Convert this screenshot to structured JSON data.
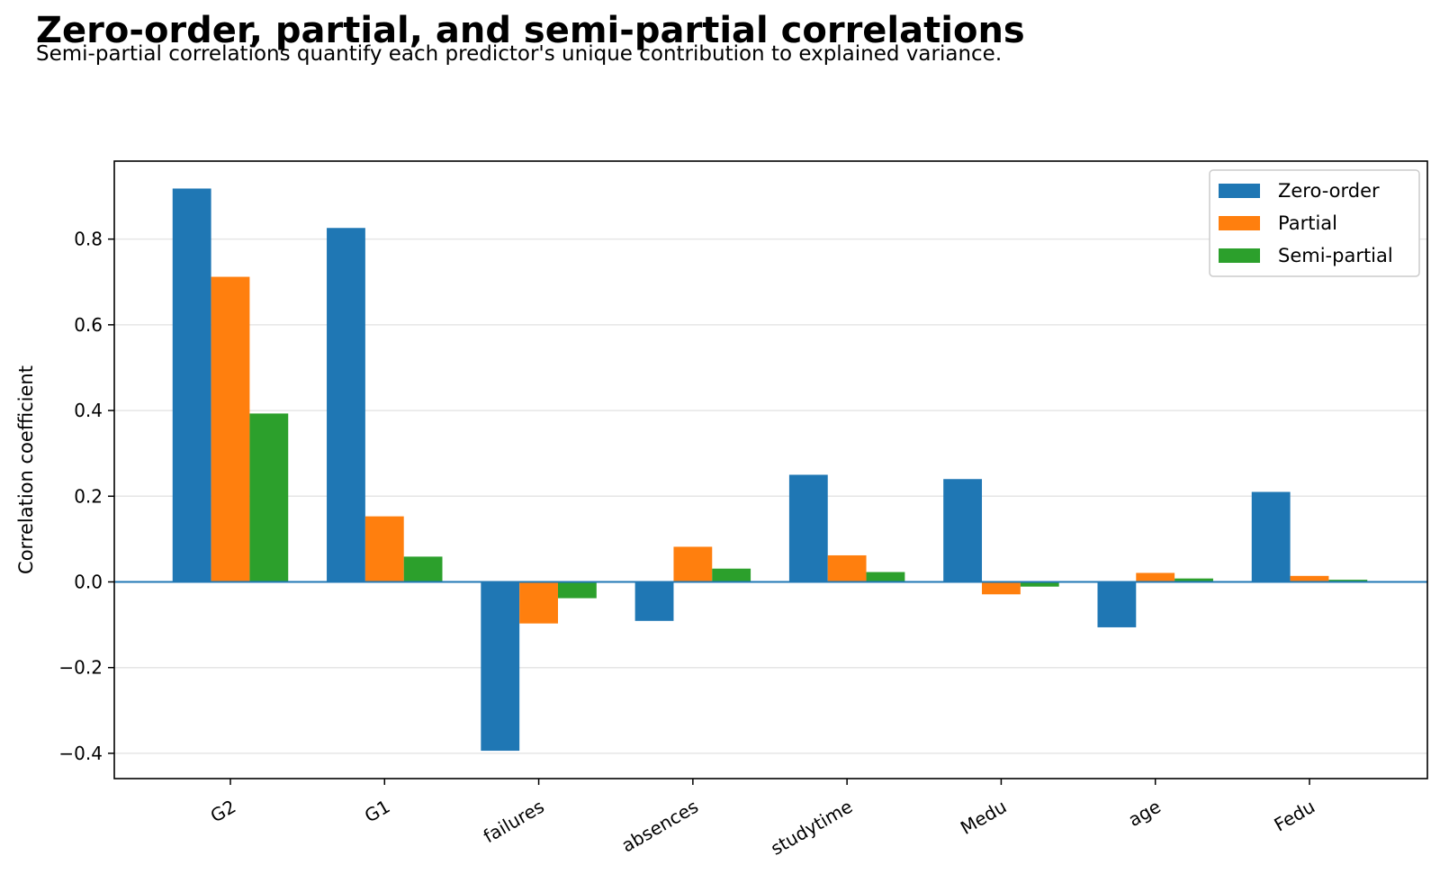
{
  "chart_data": {
    "type": "bar",
    "title": "Zero-order, partial, and semi-partial correlations",
    "subtitle": "Semi-partial correlations quantify each predictor's unique contribution to explained variance.",
    "xlabel": "",
    "ylabel": "Correlation coefficient",
    "categories": [
      "G2",
      "G1",
      "failures",
      "absences",
      "studytime",
      "Medu",
      "age",
      "Fedu"
    ],
    "series": [
      {
        "name": "Zero-order",
        "color": "#1f77b4",
        "values": [
          0.918,
          0.826,
          -0.394,
          -0.091,
          0.25,
          0.24,
          -0.106,
          0.21
        ]
      },
      {
        "name": "Partial",
        "color": "#ff7f0e",
        "values": [
          0.712,
          0.153,
          -0.097,
          0.082,
          0.062,
          -0.029,
          0.021,
          0.014
        ]
      },
      {
        "name": "Semi-partial",
        "color": "#2ca02c",
        "values": [
          0.393,
          0.059,
          -0.038,
          0.031,
          0.023,
          -0.011,
          0.008,
          0.005
        ]
      }
    ],
    "ylim": [
      -0.459,
      0.982
    ],
    "yticks": [
      -0.4,
      -0.2,
      0.0,
      0.2,
      0.4,
      0.6,
      0.8
    ],
    "ytick_labels": [
      "−0.4",
      "−0.2",
      "0.0",
      "0.2",
      "0.4",
      "0.6",
      "0.8"
    ],
    "grid": "horizontal",
    "zero_line": true,
    "legend_position": "top-right"
  }
}
